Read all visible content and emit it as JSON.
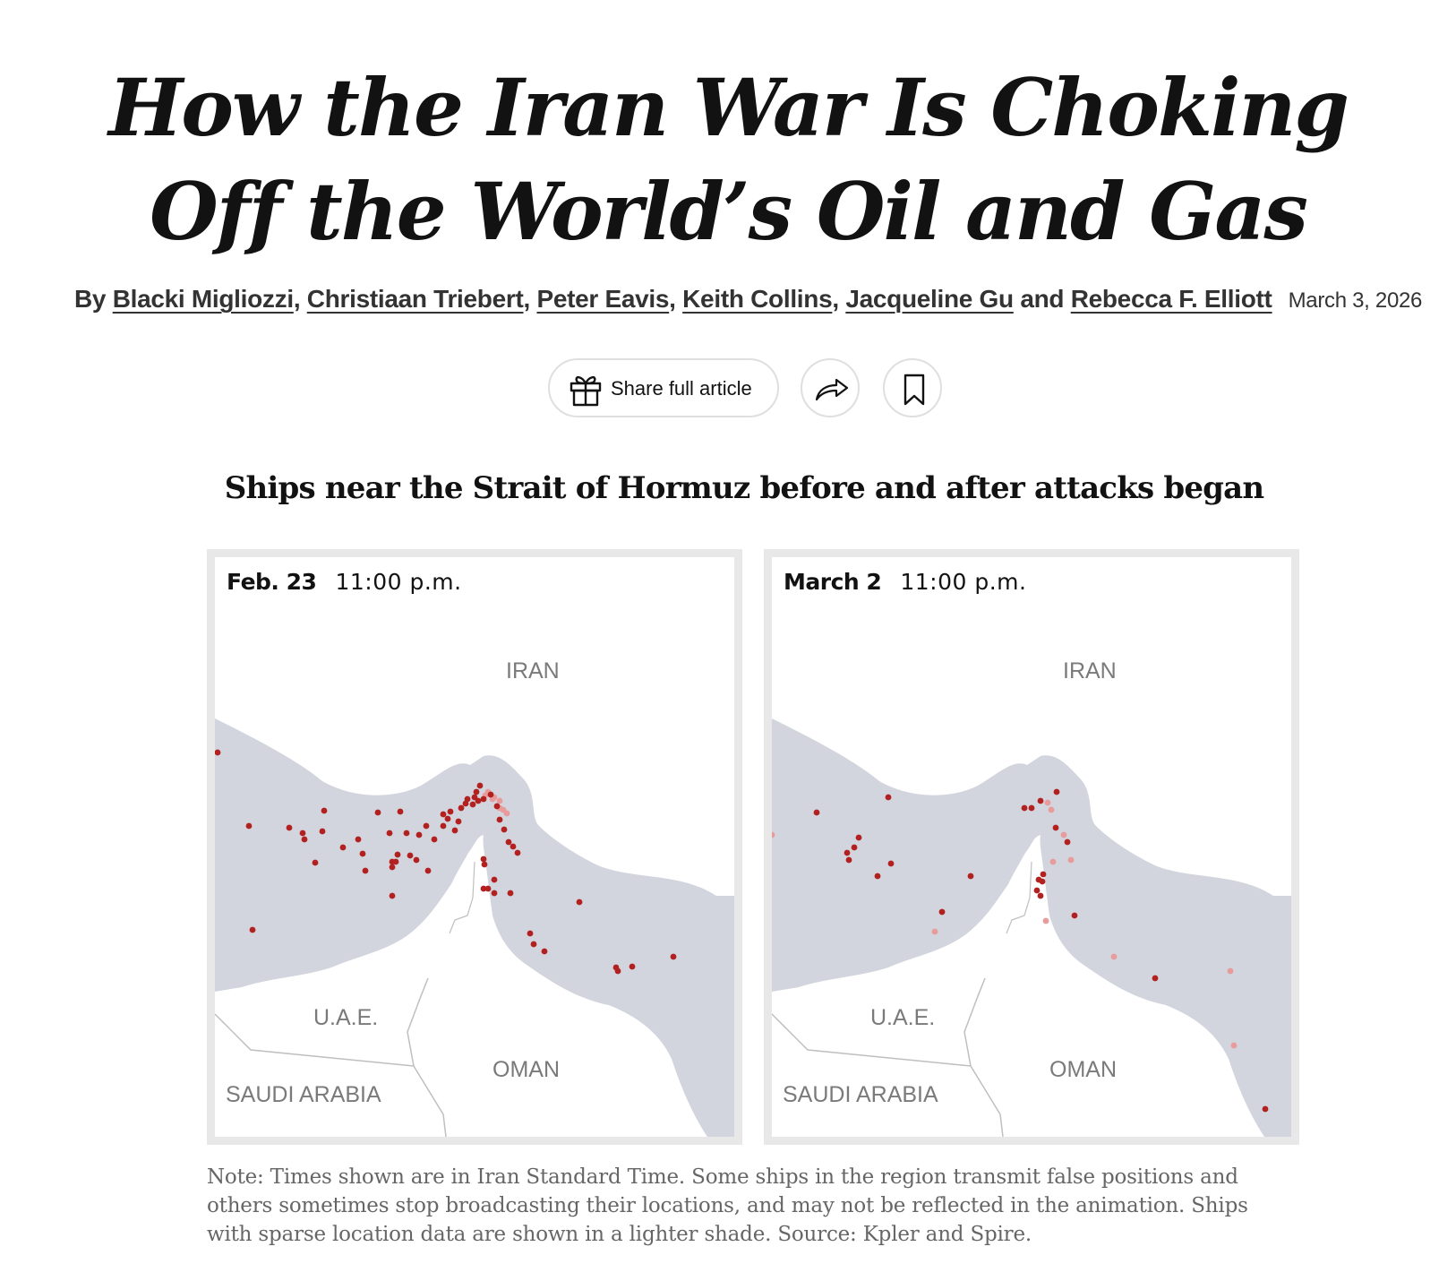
{
  "headline": {
    "line1": "How the Iran War Is Choking",
    "line2": "Off the World’s Oil and Gas"
  },
  "byline": {
    "prefix": "By",
    "authors": [
      "Blacki Migliozzi",
      "Christiaan Triebert",
      "Peter Eavis",
      "Keith Collins",
      "Jacqueline Gu",
      "Rebecca F. Elliott"
    ],
    "and": "and",
    "date": "March 3, 2026"
  },
  "actions": {
    "share_label": "Share full article",
    "share_icon": "gift-icon",
    "forward_icon": "forward-arrow-icon",
    "bookmark_icon": "bookmark-icon"
  },
  "graphic": {
    "title": "Ships near the Strait of Hormuz before and after attacks began",
    "land_color": "#d2d5dd",
    "ship_color": "#b2211f",
    "sparse_ship_color": "#e99a9a",
    "panels": [
      {
        "date": "Feb. 23",
        "time": "11:00 p.m.",
        "labels": {
          "iran": "IRAN",
          "uae": "U.A.E.",
          "oman": "OMAN",
          "saudi": "SAUDI ARABIA"
        },
        "ships_dark": [
          [
            3,
            218
          ],
          [
            38,
            300
          ],
          [
            83,
            302
          ],
          [
            98,
            308
          ],
          [
            100,
            315
          ],
          [
            122,
            283
          ],
          [
            120,
            306
          ],
          [
            112,
            341
          ],
          [
            143,
            324
          ],
          [
            160,
            315
          ],
          [
            165,
            331
          ],
          [
            168,
            350
          ],
          [
            182,
            285
          ],
          [
            195,
            308
          ],
          [
            198,
            340
          ],
          [
            198,
            346
          ],
          [
            202,
            340
          ],
          [
            204,
            332
          ],
          [
            207,
            284
          ],
          [
            214,
            308
          ],
          [
            218,
            333
          ],
          [
            225,
            338
          ],
          [
            228,
            310
          ],
          [
            238,
            350
          ],
          [
            236,
            300
          ],
          [
            245,
            315
          ],
          [
            255,
            287
          ],
          [
            255,
            300
          ],
          [
            260,
            292
          ],
          [
            263,
            284
          ],
          [
            268,
            305
          ],
          [
            272,
            295
          ],
          [
            275,
            280
          ],
          [
            280,
            275
          ],
          [
            282,
            270
          ],
          [
            290,
            268
          ],
          [
            288,
            276
          ],
          [
            292,
            262
          ],
          [
            294,
            272
          ],
          [
            300,
            270
          ],
          [
            308,
            265
          ],
          [
            296,
            255
          ],
          [
            315,
            278
          ],
          [
            318,
            293
          ],
          [
            323,
            304
          ],
          [
            328,
            318
          ],
          [
            333,
            323
          ],
          [
            338,
            330
          ],
          [
            312,
            360
          ],
          [
            300,
            370
          ],
          [
            305,
            370
          ],
          [
            312,
            375
          ],
          [
            330,
            375
          ],
          [
            300,
            337
          ],
          [
            301,
            343
          ],
          [
            407,
            385
          ],
          [
            352,
            420
          ],
          [
            356,
            432
          ],
          [
            368,
            440
          ],
          [
            448,
            458
          ],
          [
            450,
            462
          ],
          [
            466,
            457
          ],
          [
            512,
            446
          ],
          [
            42,
            416
          ],
          [
            198,
            378
          ]
        ],
        "ships_light": [
          [
            305,
            262
          ],
          [
            310,
            270
          ],
          [
            318,
            272
          ],
          [
            322,
            282
          ],
          [
            326,
            286
          ],
          [
            318,
            280
          ],
          [
            312,
            268
          ],
          [
            302,
            266
          ]
        ]
      },
      {
        "date": "March 2",
        "time": "11:00 p.m.",
        "labels": {
          "iran": "IRAN",
          "uae": "U.A.E.",
          "oman": "OMAN",
          "saudi": "SAUDI ARABIA"
        },
        "ships_dark": [
          [
            50,
            285
          ],
          [
            130,
            268
          ],
          [
            97,
            313
          ],
          [
            92,
            324
          ],
          [
            84,
            330
          ],
          [
            86,
            338
          ],
          [
            118,
            356
          ],
          [
            133,
            342
          ],
          [
            222,
            356
          ],
          [
            190,
            396
          ],
          [
            282,
            280
          ],
          [
            290,
            280
          ],
          [
            300,
            272
          ],
          [
            318,
            262
          ],
          [
            317,
            302
          ],
          [
            330,
            318
          ],
          [
            303,
            354
          ],
          [
            298,
            360
          ],
          [
            302,
            362
          ],
          [
            296,
            372
          ],
          [
            300,
            378
          ],
          [
            338,
            400
          ],
          [
            428,
            470
          ],
          [
            551,
            616
          ]
        ],
        "ships_light": [
          [
            0,
            310
          ],
          [
            308,
            274
          ],
          [
            312,
            282
          ],
          [
            314,
            340
          ],
          [
            326,
            310
          ],
          [
            334,
            338
          ],
          [
            306,
            406
          ],
          [
            382,
            446
          ],
          [
            182,
            418
          ],
          [
            512,
            462
          ],
          [
            516,
            545
          ]
        ]
      }
    ]
  },
  "note": "Note: Times shown are in Iran Standard Time. Some ships in the region transmit false positions and others sometimes stop broadcasting their locations, and may not be reflected in the animation. Ships with sparse location data are shown in a lighter shade. Source: Kpler and Spire."
}
